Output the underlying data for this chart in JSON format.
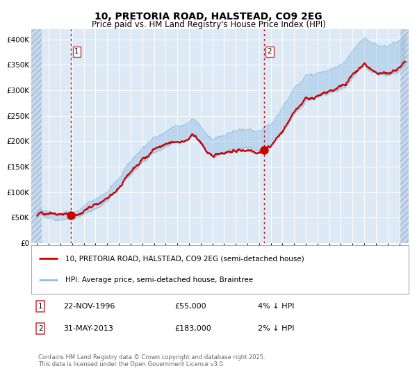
{
  "title_line1": "10, PRETORIA ROAD, HALSTEAD, CO9 2EG",
  "title_line2": "Price paid vs. HM Land Registry's House Price Index (HPI)",
  "legend_line1": "10, PRETORIA ROAD, HALSTEAD, CO9 2EG (semi-detached house)",
  "legend_line2": "HPI: Average price, semi-detached house, Braintree",
  "annotation1_date": "22-NOV-1996",
  "annotation1_price": "£55,000",
  "annotation1_hpi": "4% ↓ HPI",
  "annotation2_date": "31-MAY-2013",
  "annotation2_price": "£183,000",
  "annotation2_hpi": "2% ↓ HPI",
  "footer": "Contains HM Land Registry data © Crown copyright and database right 2025.\nThis data is licensed under the Open Government Licence v3.0.",
  "purchase1_year": 1996.9,
  "purchase1_value": 55000,
  "purchase2_year": 2013.4,
  "purchase2_value": 183000,
  "hpi_color": "#92bfe0",
  "property_color": "#cc0000",
  "vline_color": "#cc0000",
  "plot_bg": "#ddeaf6",
  "hatch_color": "#c5d8ec",
  "grid_color": "#ffffff",
  "ylim": [
    0,
    420000
  ],
  "yticks": [
    0,
    50000,
    100000,
    150000,
    200000,
    250000,
    300000,
    350000,
    400000
  ],
  "ytick_labels": [
    "£0",
    "£50K",
    "£100K",
    "£150K",
    "£200K",
    "£250K",
    "£300K",
    "£350K",
    "£400K"
  ],
  "xlim_start": 1993.5,
  "xlim_end": 2025.8,
  "hatch_left_end": 1994.4,
  "hatch_right_start": 2025.1
}
